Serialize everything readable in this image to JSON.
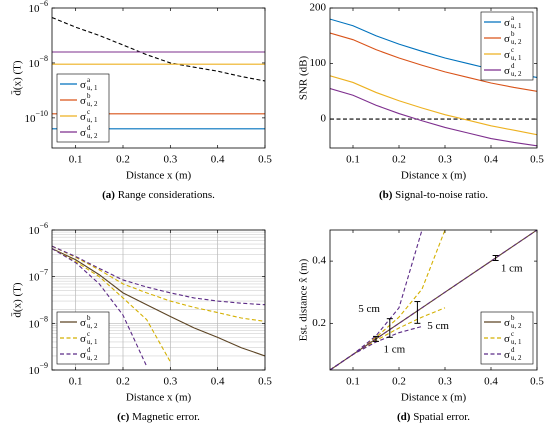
{
  "chart_data": [
    {
      "type": "line",
      "log_y": true,
      "ylabel": "d̄(x) (T)",
      "xlabel": "Distance x (m)",
      "caption": {
        "label": "(a)",
        "text": "Range considerations."
      },
      "x": [
        0.05,
        0.1,
        0.15,
        0.2,
        0.25,
        0.3,
        0.35,
        0.4,
        0.45,
        0.5
      ],
      "xlim": [
        0.05,
        0.5
      ],
      "xticks": [
        0.1,
        0.2,
        0.3,
        0.4,
        0.5
      ],
      "ylim": [
        8e-12,
        1e-06
      ],
      "yticks": [
        {
          "value": 1e-10,
          "label": "10",
          "exponent": "−10"
        },
        {
          "value": 1e-08,
          "label": "10",
          "exponent": "−8"
        },
        {
          "value": 1e-06,
          "label": "10",
          "exponent": "−6"
        }
      ],
      "legend": "lower-left",
      "series": [
        {
          "name": {
            "base": "σ",
            "sup": "a",
            "sub": "u, 1"
          },
          "color": "#0072bd",
          "values": [
            4e-11,
            4e-11,
            4e-11,
            4e-11,
            4e-11,
            4e-11,
            4e-11,
            4e-11,
            4e-11,
            4e-11
          ]
        },
        {
          "name": {
            "base": "σ",
            "sup": "b",
            "sub": "u, 2"
          },
          "color": "#d95319",
          "values": [
            1.4e-10,
            1.4e-10,
            1.4e-10,
            1.4e-10,
            1.4e-10,
            1.4e-10,
            1.4e-10,
            1.4e-10,
            1.4e-10,
            1.4e-10
          ]
        },
        {
          "name": {
            "base": "σ",
            "sup": "c",
            "sub": "u, 1"
          },
          "color": "#edb120",
          "values": [
            9e-09,
            9e-09,
            9e-09,
            9e-09,
            9e-09,
            9e-09,
            9e-09,
            9e-09,
            9e-09,
            9e-09
          ]
        },
        {
          "name": {
            "base": "σ",
            "sup": "d",
            "sub": "u, 2"
          },
          "color": "#7e2f8e",
          "values": [
            2.5e-08,
            2.5e-08,
            2.5e-08,
            2.5e-08,
            2.5e-08,
            2.5e-08,
            2.5e-08,
            2.5e-08,
            2.5e-08,
            2.5e-08
          ]
        }
      ],
      "reference": {
        "color": "#000000",
        "dash": true,
        "values": [
          4.5e-07,
          2e-07,
          1e-07,
          4.5e-08,
          2e-08,
          1e-08,
          7e-09,
          5e-09,
          3.2e-09,
          2.2e-09
        ]
      }
    },
    {
      "type": "line",
      "ylabel": "SNR (dB)",
      "xlabel": "Distance x (m)",
      "caption": {
        "label": "(b)",
        "text": "Signal-to-noise ratio."
      },
      "x": [
        0.05,
        0.1,
        0.15,
        0.2,
        0.25,
        0.3,
        0.35,
        0.4,
        0.45,
        0.5
      ],
      "xlim": [
        0.05,
        0.5
      ],
      "xticks": [
        0.1,
        0.2,
        0.3,
        0.4,
        0.5
      ],
      "ylim": [
        -52,
        200
      ],
      "yticks": [
        0,
        100,
        200
      ],
      "legend": "upper-right",
      "series": [
        {
          "name": {
            "base": "σ",
            "sup": "a",
            "sub": "u, 1"
          },
          "color": "#0072bd",
          "values": [
            180,
            168,
            150,
            135,
            122,
            110,
            100,
            90,
            82,
            75
          ]
        },
        {
          "name": {
            "base": "σ",
            "sup": "b",
            "sub": "u, 2"
          },
          "color": "#d95319",
          "values": [
            155,
            143,
            125,
            110,
            97,
            85,
            75,
            65,
            57,
            50
          ]
        },
        {
          "name": {
            "base": "σ",
            "sup": "c",
            "sub": "u, 1"
          },
          "color": "#edb120",
          "values": [
            78,
            66,
            48,
            33,
            20,
            8,
            -2,
            -12,
            -20,
            -28
          ]
        },
        {
          "name": {
            "base": "σ",
            "sup": "d",
            "sub": "u, 2"
          },
          "color": "#7e2f8e",
          "values": [
            55,
            43,
            25,
            10,
            -3,
            -15,
            -25,
            -35,
            -42,
            -48
          ]
        }
      ],
      "reference": {
        "color": "#000000",
        "dash": true,
        "values": [
          0,
          0,
          0,
          0,
          0,
          0,
          0,
          0,
          0,
          0
        ]
      }
    },
    {
      "type": "line",
      "log_y": true,
      "grid": true,
      "minor_grid": true,
      "ylabel": "d̄(x) (T)",
      "xlabel": "Distance x (m)",
      "caption": {
        "label": "(c)",
        "text": "Magnetic error."
      },
      "x": [
        0.05,
        0.1,
        0.15,
        0.2,
        0.25,
        0.3,
        0.35,
        0.4,
        0.45,
        0.5
      ],
      "xlim": [
        0.05,
        0.5
      ],
      "xticks": [
        0.1,
        0.2,
        0.3,
        0.4,
        0.5
      ],
      "ylim": [
        1e-09,
        1e-06
      ],
      "yticks": [
        {
          "value": 1e-09,
          "label": "10",
          "exponent": "−9"
        },
        {
          "value": 1e-08,
          "label": "10",
          "exponent": "−8"
        },
        {
          "value": 1e-07,
          "label": "10",
          "exponent": "−7"
        },
        {
          "value": 1e-06,
          "label": "10",
          "exponent": "−6"
        }
      ],
      "legend": "lower-left",
      "series": [
        {
          "name": {
            "base": "σ",
            "sup": "b",
            "sub": "u, 2"
          },
          "color": "#5c4424",
          "values": [
            4e-07,
            2.3e-07,
            1.1e-07,
            4.5e-08,
            2.5e-08,
            1.4e-08,
            8e-09,
            5e-09,
            3e-09,
            2e-09
          ]
        },
        {
          "name": {
            "base": "σ",
            "sup": "c",
            "sub": "u, 1"
          },
          "color": "#d4b000",
          "dash": true,
          "upper": [
            4.5e-07,
            2.6e-07,
            1.4e-07,
            7e-08,
            4.5e-08,
            3e-08,
            2.2e-08,
            1.7e-08,
            1.3e-08,
            1.1e-08
          ],
          "lower": [
            4e-07,
            2.1e-07,
            1e-07,
            3.5e-08,
            1.2e-08,
            1.5e-09,
            null,
            null,
            null,
            null
          ]
        },
        {
          "name": {
            "base": "σ",
            "sup": "d",
            "sub": "u, 2"
          },
          "color": "#5b2a86",
          "dash": true,
          "upper": [
            4.5e-07,
            2.7e-07,
            1.5e-07,
            8.5e-08,
            6e-08,
            4.5e-08,
            3.5e-08,
            3e-08,
            2.7e-08,
            2.5e-08
          ],
          "lower": [
            4e-07,
            2e-07,
            7e-08,
            1.5e-08,
            1.2e-09,
            null,
            null,
            null,
            null,
            null
          ]
        }
      ]
    },
    {
      "type": "line",
      "ylabel": "Est. distance x̂ (m)",
      "xlabel": "Distance x (m)",
      "caption": {
        "label": "(d)",
        "text": "Spatial error."
      },
      "x": [
        0.05,
        0.1,
        0.15,
        0.2,
        0.25,
        0.3,
        0.35,
        0.4,
        0.45,
        0.5
      ],
      "xlim": [
        0.05,
        0.5
      ],
      "xticks": [
        0.1,
        0.2,
        0.3,
        0.4,
        0.5
      ],
      "ylim": [
        0.05,
        0.5
      ],
      "yticks": [
        0.2,
        0.4
      ],
      "legend": "lower-right",
      "series": [
        {
          "name": {
            "base": "σ",
            "sup": "b",
            "sub": "u, 2"
          },
          "color": "#5c4424",
          "values": [
            0.05,
            0.1,
            0.15,
            0.2,
            0.25,
            0.3,
            0.35,
            0.4,
            0.45,
            0.5
          ]
        },
        {
          "name": {
            "base": "σ",
            "sup": "c",
            "sub": "u, 1"
          },
          "color": "#d4b000",
          "dash": true,
          "values": [
            0.05,
            0.1,
            0.15,
            0.2,
            0.25,
            0.3,
            0.35,
            0.4,
            0.45,
            0.5
          ],
          "upper": [
            0.05,
            0.1,
            0.155,
            0.22,
            0.31,
            0.5,
            null,
            null,
            null,
            null
          ],
          "lower": [
            0.05,
            0.1,
            0.145,
            0.185,
            0.22,
            0.25,
            null,
            null,
            null,
            null
          ]
        },
        {
          "name": {
            "base": "σ",
            "sup": "d",
            "sub": "u, 2"
          },
          "color": "#5b2a86",
          "dash": true,
          "values": [
            0.05,
            0.1,
            0.15,
            0.2,
            0.25,
            0.3,
            0.35,
            0.4,
            0.45,
            0.5
          ],
          "upper": [
            0.05,
            0.1,
            0.16,
            0.25,
            0.5,
            null,
            null,
            null,
            null,
            null
          ],
          "lower": [
            0.05,
            0.1,
            0.14,
            0.17,
            0.19,
            null,
            null,
            null,
            null,
            null
          ]
        }
      ],
      "errorbars": [
        {
          "x": 0.15,
          "value": 0.15,
          "error": 0.008
        },
        {
          "x": 0.18,
          "value": 0.185,
          "error": 0.03
        },
        {
          "x": 0.24,
          "value": 0.235,
          "error": 0.035
        },
        {
          "x": 0.41,
          "value": 0.41,
          "error": 0.008
        }
      ],
      "annotations": [
        "5 cm",
        "1 cm",
        "5 cm",
        "1 cm"
      ]
    }
  ]
}
